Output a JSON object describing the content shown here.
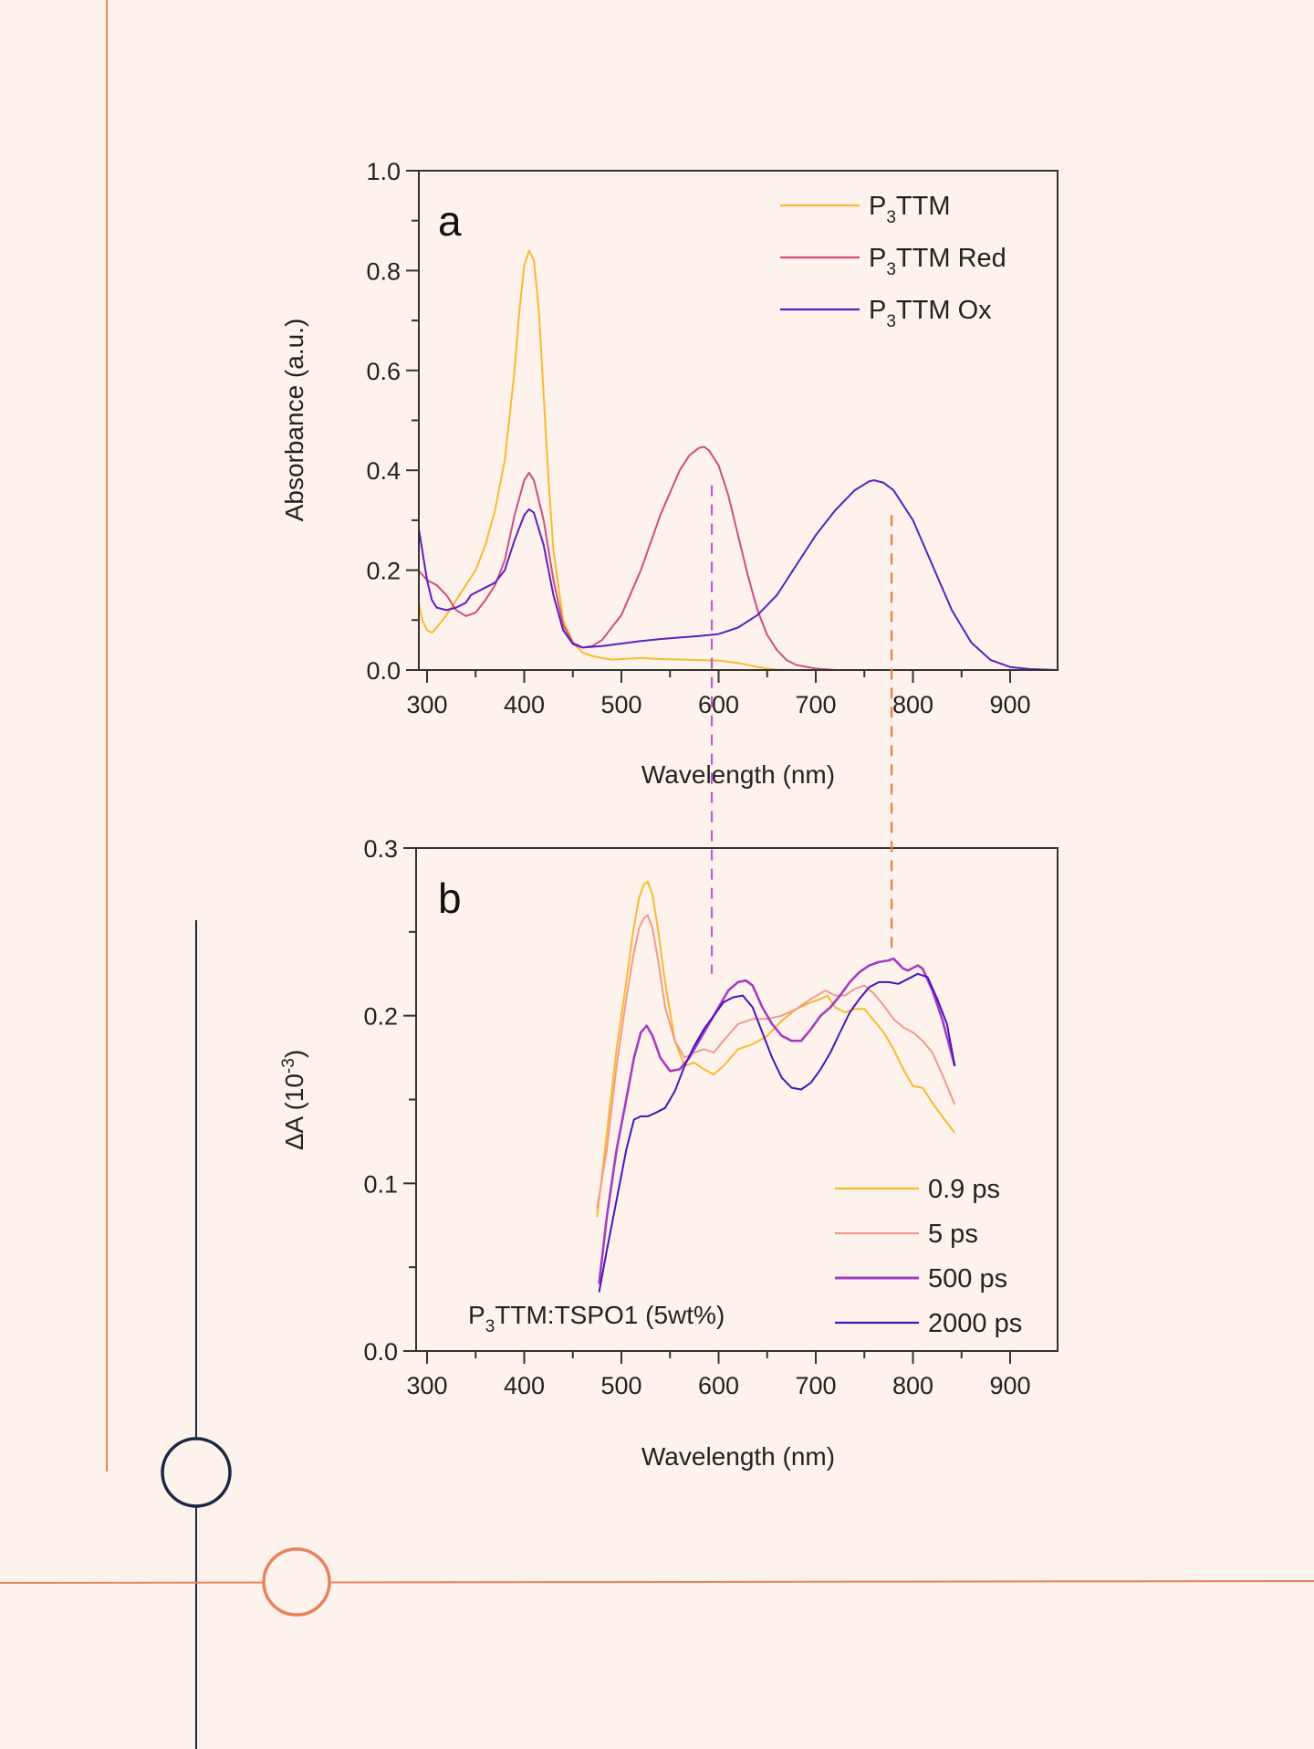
{
  "colors": {
    "background": "#fdf3ec",
    "accent_orange": "#e8825a",
    "accent_navy": "#1c2740",
    "axis": "#333333"
  },
  "chart_data": [
    {
      "id": "a",
      "type": "line",
      "panel_label": "a",
      "title": "",
      "xlabel": "Wavelength (nm)",
      "ylabel": "Absorbance (a.u.)",
      "xlim": [
        291,
        950
      ],
      "ylim": [
        0.0,
        1.0
      ],
      "x_ticks": [
        300,
        400,
        500,
        600,
        700,
        800,
        900
      ],
      "x_tick_labels": [
        "300",
        "400",
        "500",
        "600",
        "700",
        "800",
        "900"
      ],
      "x_minor_step": 50,
      "y_ticks": [
        0.0,
        0.2,
        0.4,
        0.6,
        0.8,
        1.0
      ],
      "y_tick_labels": [
        "0.0",
        "0.2",
        "0.4",
        "0.6",
        "0.8",
        "1.0"
      ],
      "y_minor_step": 0.1,
      "grid": false,
      "legend_position": "top-right",
      "series": [
        {
          "name": "P3TTM",
          "label_main": "P",
          "label_sub": "3",
          "label_rest": "TTM",
          "color": "#f9b92f",
          "x": [
            291,
            295,
            300,
            305,
            310,
            320,
            330,
            340,
            350,
            360,
            370,
            380,
            390,
            395,
            400,
            405,
            410,
            415,
            420,
            425,
            430,
            440,
            450,
            460,
            470,
            480,
            490,
            500,
            520,
            540,
            560,
            580,
            600,
            620,
            640,
            650,
            660,
            680,
            700,
            950
          ],
          "y": [
            0.14,
            0.1,
            0.08,
            0.075,
            0.085,
            0.11,
            0.14,
            0.17,
            0.2,
            0.25,
            0.32,
            0.42,
            0.6,
            0.72,
            0.81,
            0.84,
            0.82,
            0.72,
            0.55,
            0.38,
            0.24,
            0.1,
            0.055,
            0.035,
            0.028,
            0.024,
            0.021,
            0.022,
            0.024,
            0.022,
            0.021,
            0.02,
            0.019,
            0.014,
            0.006,
            0.003,
            0.001,
            0.0,
            0.0,
            0.0
          ]
        },
        {
          "name": "P3TTM Red",
          "label_main": "P",
          "label_sub": "3",
          "label_rest": "TTM Red",
          "color": "#cc4e80",
          "x": [
            291,
            300,
            310,
            320,
            330,
            340,
            350,
            360,
            370,
            380,
            390,
            400,
            405,
            410,
            420,
            430,
            440,
            450,
            460,
            470,
            480,
            500,
            520,
            540,
            560,
            570,
            580,
            585,
            590,
            600,
            610,
            620,
            630,
            640,
            650,
            660,
            670,
            680,
            700,
            720,
            950
          ],
          "y": [
            0.2,
            0.18,
            0.17,
            0.15,
            0.12,
            0.108,
            0.115,
            0.14,
            0.17,
            0.22,
            0.31,
            0.38,
            0.395,
            0.38,
            0.3,
            0.18,
            0.09,
            0.055,
            0.045,
            0.048,
            0.06,
            0.11,
            0.2,
            0.31,
            0.4,
            0.43,
            0.445,
            0.447,
            0.44,
            0.41,
            0.35,
            0.27,
            0.19,
            0.12,
            0.07,
            0.04,
            0.02,
            0.01,
            0.003,
            0.0,
            0.0
          ]
        },
        {
          "name": "P3TTM Ox",
          "label_main": "P",
          "label_sub": "3",
          "label_rest": "TTM Ox",
          "color": "#5b1fc4",
          "x": [
            291,
            295,
            300,
            305,
            310,
            320,
            330,
            340,
            345,
            350,
            360,
            370,
            380,
            390,
            400,
            405,
            410,
            420,
            430,
            440,
            450,
            460,
            480,
            500,
            520,
            540,
            560,
            580,
            600,
            620,
            640,
            660,
            680,
            700,
            720,
            740,
            755,
            760,
            770,
            780,
            800,
            820,
            840,
            860,
            880,
            900,
            920,
            950
          ],
          "y": [
            0.29,
            0.24,
            0.18,
            0.14,
            0.125,
            0.12,
            0.125,
            0.135,
            0.15,
            0.155,
            0.165,
            0.175,
            0.2,
            0.26,
            0.31,
            0.322,
            0.315,
            0.25,
            0.15,
            0.08,
            0.052,
            0.045,
            0.048,
            0.053,
            0.058,
            0.062,
            0.065,
            0.068,
            0.072,
            0.085,
            0.11,
            0.15,
            0.21,
            0.27,
            0.32,
            0.36,
            0.378,
            0.38,
            0.375,
            0.36,
            0.3,
            0.21,
            0.12,
            0.055,
            0.02,
            0.006,
            0.002,
            0.0
          ]
        }
      ]
    },
    {
      "id": "b",
      "type": "line",
      "panel_label": "b",
      "title": "",
      "xlabel": "Wavelength (nm)",
      "ylabel": "ΔA (10-3)",
      "ylabel_main": "ΔA (10",
      "ylabel_sup": "-3",
      "ylabel_end": ")",
      "xlim": [
        291,
        950
      ],
      "ylim": [
        0.0,
        0.3
      ],
      "x_ticks": [
        300,
        400,
        500,
        600,
        700,
        800,
        900
      ],
      "x_tick_labels": [
        "300",
        "400",
        "500",
        "600",
        "700",
        "800",
        "900"
      ],
      "x_minor_step": 50,
      "y_ticks": [
        0.0,
        0.1,
        0.2,
        0.3
      ],
      "y_tick_labels": [
        "0.0",
        "0.1",
        "0.2",
        "0.3"
      ],
      "y_minor_step": 0.05,
      "grid": false,
      "legend_position": "bottom-right",
      "annotation": {
        "text_main": "P",
        "text_sub": "3",
        "text_rest": "TTM:TSPO1 (5wt%)",
        "position": "bottom-center"
      },
      "series": [
        {
          "name": "0.9 ps",
          "color": "#f9b92f",
          "x": [
            475,
            485,
            495,
            505,
            512,
            518,
            523,
            527,
            532,
            538,
            545,
            555,
            565,
            575,
            585,
            595,
            605,
            620,
            635,
            650,
            665,
            680,
            695,
            705,
            712,
            720,
            730,
            740,
            750,
            760,
            770,
            780,
            790,
            800,
            810,
            820,
            830,
            843
          ],
          "y": [
            0.08,
            0.13,
            0.18,
            0.22,
            0.25,
            0.27,
            0.278,
            0.28,
            0.272,
            0.25,
            0.22,
            0.185,
            0.17,
            0.172,
            0.168,
            0.165,
            0.17,
            0.18,
            0.183,
            0.188,
            0.197,
            0.204,
            0.208,
            0.21,
            0.212,
            0.205,
            0.202,
            0.204,
            0.204,
            0.197,
            0.19,
            0.18,
            0.168,
            0.158,
            0.157,
            0.148,
            0.14,
            0.13
          ]
        },
        {
          "name": "5 ps",
          "color": "#f2998e",
          "x": [
            475,
            485,
            495,
            505,
            512,
            518,
            523,
            527,
            532,
            538,
            545,
            555,
            565,
            575,
            585,
            595,
            605,
            620,
            635,
            650,
            665,
            680,
            695,
            710,
            720,
            730,
            740,
            750,
            760,
            770,
            780,
            790,
            800,
            810,
            820,
            830,
            843
          ],
          "y": [
            0.085,
            0.12,
            0.17,
            0.21,
            0.235,
            0.252,
            0.258,
            0.26,
            0.252,
            0.232,
            0.205,
            0.185,
            0.175,
            0.178,
            0.18,
            0.178,
            0.185,
            0.195,
            0.198,
            0.198,
            0.2,
            0.204,
            0.21,
            0.215,
            0.212,
            0.212,
            0.216,
            0.218,
            0.213,
            0.206,
            0.198,
            0.193,
            0.19,
            0.185,
            0.178,
            0.165,
            0.147
          ]
        },
        {
          "name": "500 ps",
          "color": "#a43cc0",
          "x": [
            477,
            485,
            495,
            505,
            513,
            520,
            526,
            532,
            540,
            550,
            560,
            570,
            580,
            590,
            600,
            610,
            620,
            628,
            635,
            645,
            655,
            665,
            675,
            685,
            695,
            705,
            715,
            725,
            735,
            745,
            755,
            765,
            775,
            780,
            790,
            795,
            805,
            810,
            820,
            830,
            843
          ],
          "y": [
            0.04,
            0.08,
            0.12,
            0.15,
            0.175,
            0.19,
            0.194,
            0.188,
            0.175,
            0.167,
            0.168,
            0.175,
            0.185,
            0.195,
            0.205,
            0.215,
            0.22,
            0.221,
            0.218,
            0.205,
            0.195,
            0.188,
            0.185,
            0.185,
            0.192,
            0.2,
            0.205,
            0.212,
            0.22,
            0.226,
            0.23,
            0.232,
            0.233,
            0.234,
            0.228,
            0.227,
            0.23,
            0.228,
            0.215,
            0.198,
            0.17
          ]
        },
        {
          "name": "2000 ps",
          "color": "#4a12bf",
          "x": [
            477,
            485,
            495,
            505,
            513,
            520,
            527,
            535,
            545,
            555,
            565,
            575,
            585,
            595,
            605,
            615,
            625,
            635,
            645,
            655,
            665,
            675,
            685,
            695,
            705,
            715,
            725,
            735,
            745,
            755,
            765,
            775,
            785,
            795,
            805,
            815,
            825,
            835,
            843
          ],
          "y": [
            0.035,
            0.06,
            0.09,
            0.12,
            0.138,
            0.14,
            0.14,
            0.142,
            0.145,
            0.155,
            0.17,
            0.182,
            0.192,
            0.2,
            0.208,
            0.211,
            0.212,
            0.205,
            0.19,
            0.175,
            0.163,
            0.157,
            0.156,
            0.16,
            0.168,
            0.178,
            0.19,
            0.202,
            0.21,
            0.217,
            0.22,
            0.22,
            0.219,
            0.222,
            0.225,
            0.223,
            0.21,
            0.195,
            0.17
          ]
        }
      ]
    }
  ],
  "guides": [
    {
      "name": "red-form-guide",
      "color": "#b85bd0",
      "wavelength": 593,
      "from_panel": "a",
      "from_value": 0.37,
      "to_panel": "b",
      "to_value": 0.225
    },
    {
      "name": "ox-form-guide",
      "color": "#f07a40",
      "wavelength": 778,
      "from_panel": "a",
      "from_value": 0.31,
      "to_panel": "b",
      "to_value": 0.24
    }
  ]
}
